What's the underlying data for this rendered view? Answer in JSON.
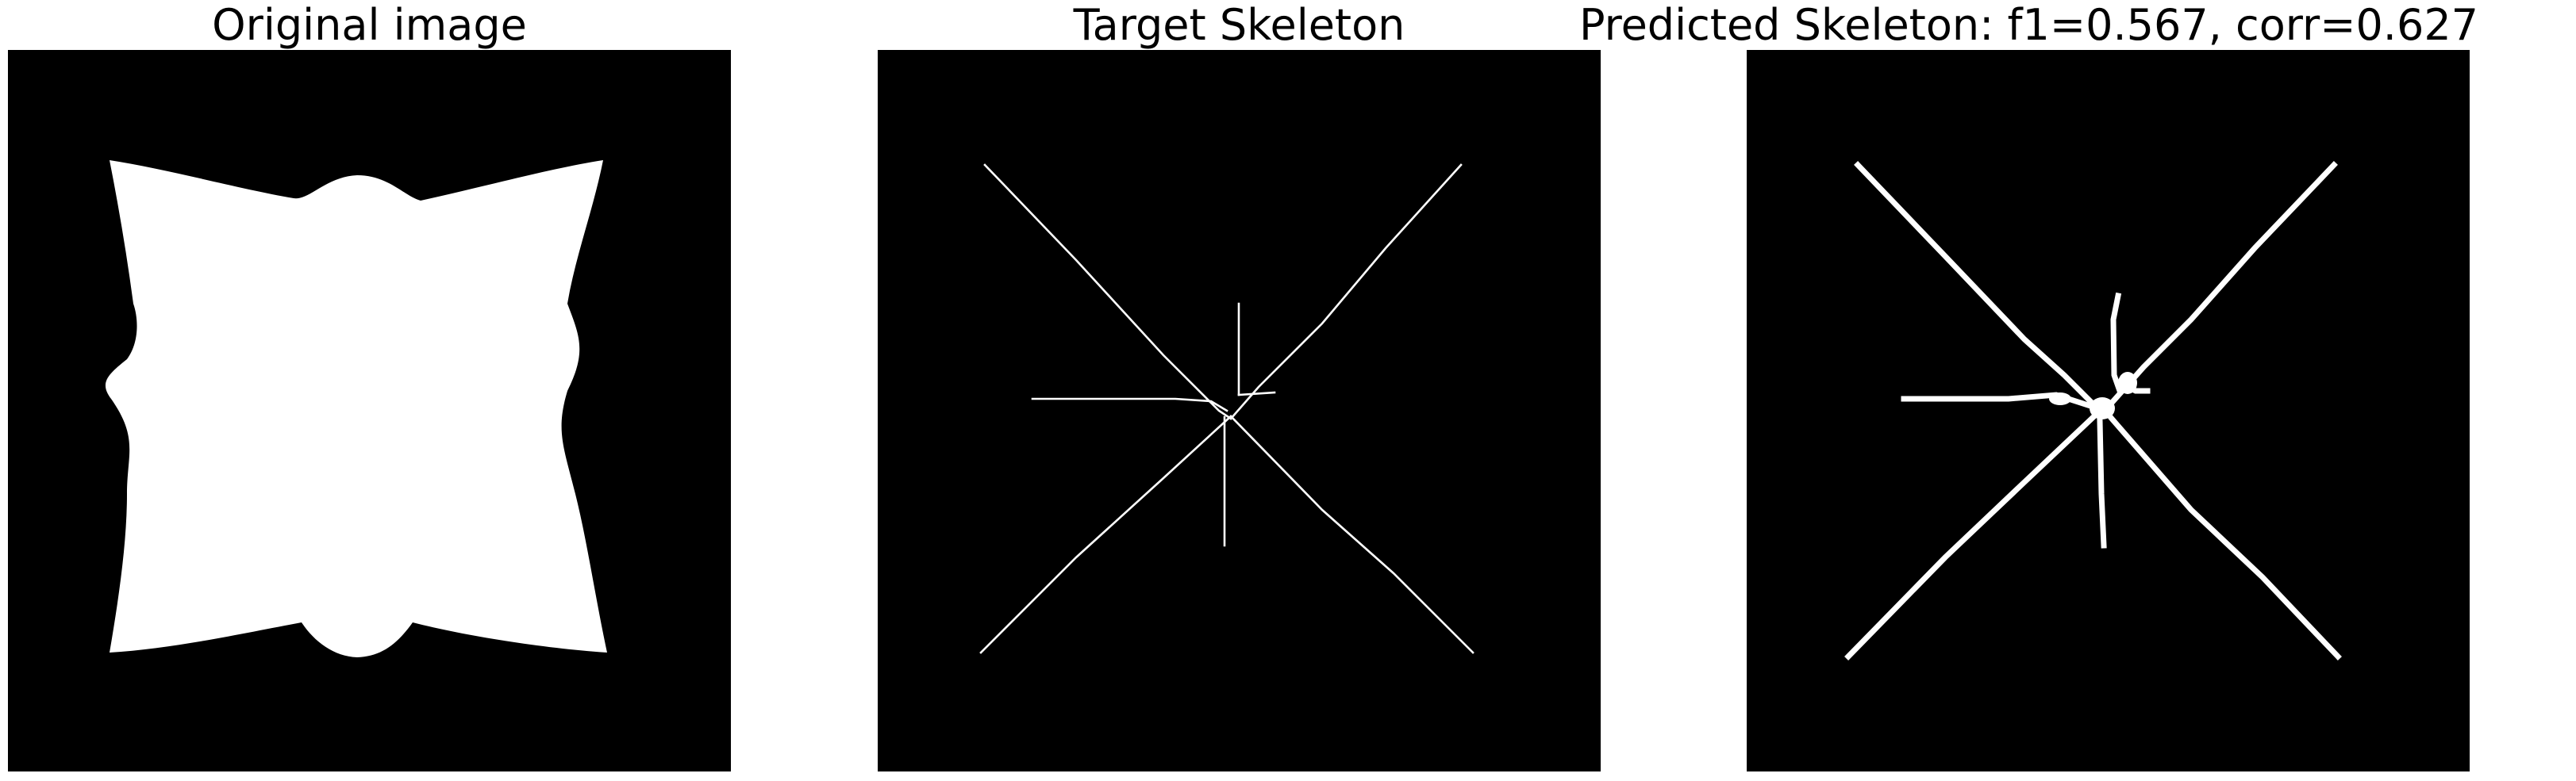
{
  "figure": {
    "background": "#ffffff",
    "image_background": "#000000",
    "foreground": "#ffffff"
  },
  "panels": [
    {
      "title": "Original image"
    },
    {
      "title": "Target Skeleton"
    },
    {
      "title": "Predicted Skeleton: f1=0.567, corr=0.627"
    }
  ]
}
